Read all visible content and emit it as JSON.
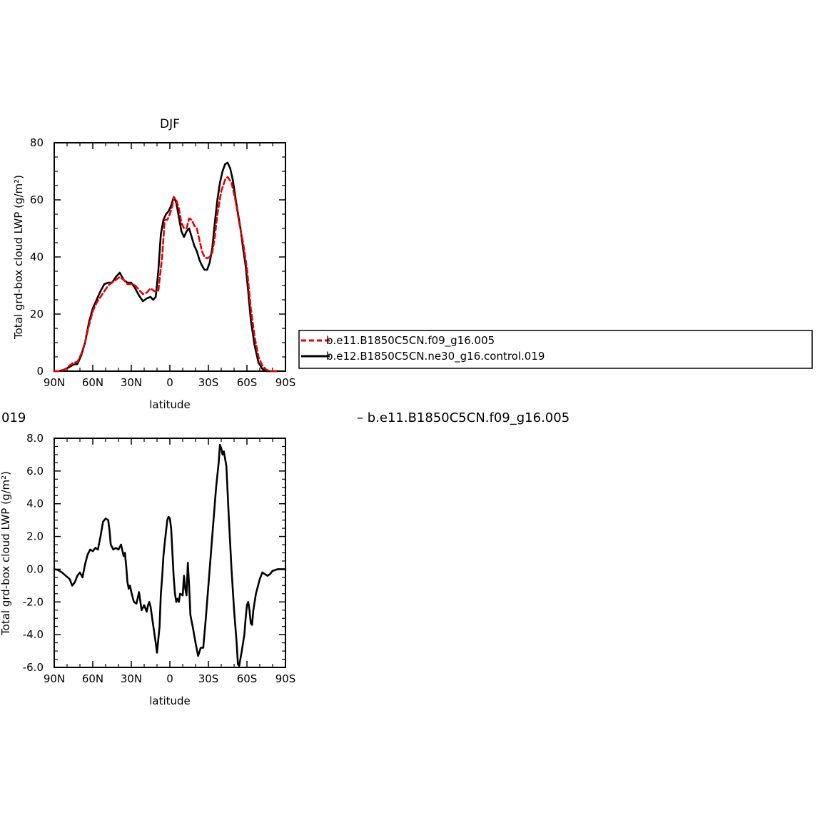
{
  "chart_data": [
    {
      "type": "line",
      "title": "DJF",
      "xlabel": "latitude",
      "ylabel": "Total grd-box cloud LWP (g/m²)",
      "xlim": [
        90,
        -90
      ],
      "ylim": [
        0,
        80
      ],
      "x_ticks": [
        90,
        60,
        30,
        0,
        -30,
        -60,
        -90
      ],
      "x_tick_labels": [
        "90N",
        "60N",
        "30N",
        "0",
        "30S",
        "60S",
        "90S"
      ],
      "y_ticks": [
        0,
        20,
        40,
        60,
        80
      ],
      "y_tick_labels": [
        "0",
        "20",
        "40",
        "60",
        "80"
      ],
      "grid": false,
      "legend": {
        "placement": "right",
        "entries": [
          "b.e11.B1850C5CN.f09_g16.005",
          "b.e12.B1850C5CN.ne30_g16.control.019"
        ]
      },
      "series": [
        {
          "name": "b.e11.B1850C5CN.f09_g16.005",
          "color": "#e60000",
          "dash": "dashed",
          "points": [
            [
              90,
              0
            ],
            [
              87,
              0
            ],
            [
              84,
              0.2
            ],
            [
              81,
              0.8
            ],
            [
              78,
              2
            ],
            [
              75,
              3
            ],
            [
              72,
              3.2
            ],
            [
              69,
              6
            ],
            [
              66,
              10
            ],
            [
              63,
              16
            ],
            [
              60,
              21
            ],
            [
              57,
              24
            ],
            [
              54,
              26
            ],
            [
              51,
              28
            ],
            [
              48,
              30
            ],
            [
              45,
              31
            ],
            [
              42,
              32
            ],
            [
              39,
              33
            ],
            [
              36,
              32
            ],
            [
              33,
              30.5
            ],
            [
              30,
              30.5
            ],
            [
              27,
              30
            ],
            [
              24,
              28.5
            ],
            [
              21,
              27
            ],
            [
              18,
              27.5
            ],
            [
              15,
              29
            ],
            [
              12,
              28
            ],
            [
              9,
              28
            ],
            [
              6,
              40
            ],
            [
              4,
              53
            ],
            [
              2,
              53
            ],
            [
              0,
              55
            ],
            [
              -2,
              58
            ],
            [
              -3,
              61
            ],
            [
              -5,
              60
            ],
            [
              -7,
              57
            ],
            [
              -9,
              52
            ],
            [
              -11,
              50
            ],
            [
              -13,
              50
            ],
            [
              -15,
              53.5
            ],
            [
              -17,
              53
            ],
            [
              -19,
              51
            ],
            [
              -21,
              50
            ],
            [
              -23,
              46
            ],
            [
              -25,
              42
            ],
            [
              -27,
              40
            ],
            [
              -29,
              39.5
            ],
            [
              -31,
              40
            ],
            [
              -33,
              41.5
            ],
            [
              -35,
              47
            ],
            [
              -37,
              55
            ],
            [
              -40,
              63
            ],
            [
              -43,
              67
            ],
            [
              -45,
              68
            ],
            [
              -48,
              66
            ],
            [
              -51,
              60
            ],
            [
              -54,
              52
            ],
            [
              -57,
              45
            ],
            [
              -60,
              36
            ],
            [
              -63,
              22
            ],
            [
              -66,
              12
            ],
            [
              -69,
              5
            ],
            [
              -72,
              2
            ],
            [
              -75,
              0.5
            ],
            [
              -78,
              0
            ],
            [
              -81,
              0
            ],
            [
              -84,
              0
            ]
          ]
        },
        {
          "name": "b.e12.B1850C5CN.ne30_g16.control.019",
          "color": "#000000",
          "dash": "solid",
          "points": [
            [
              90,
              0
            ],
            [
              87,
              0
            ],
            [
              84,
              0.3
            ],
            [
              81,
              0.8
            ],
            [
              78,
              1.5
            ],
            [
              75,
              2.3
            ],
            [
              72,
              2.5
            ],
            [
              69,
              5.5
            ],
            [
              66,
              10
            ],
            [
              63,
              17
            ],
            [
              60,
              22
            ],
            [
              57,
              25
            ],
            [
              54,
              28
            ],
            [
              51,
              30.5
            ],
            [
              48,
              31
            ],
            [
              45,
              31
            ],
            [
              42,
              33
            ],
            [
              39,
              34.5
            ],
            [
              36,
              32
            ],
            [
              33,
              31
            ],
            [
              30,
              31
            ],
            [
              27,
              29
            ],
            [
              24,
              26.5
            ],
            [
              21,
              24.5
            ],
            [
              18,
              25.5
            ],
            [
              15,
              26
            ],
            [
              13,
              25
            ],
            [
              11,
              26
            ],
            [
              9,
              35
            ],
            [
              7,
              48
            ],
            [
              5,
              53
            ],
            [
              3,
              55
            ],
            [
              1,
              56
            ],
            [
              -1,
              58
            ],
            [
              -3,
              61
            ],
            [
              -5,
              59
            ],
            [
              -7,
              54
            ],
            [
              -9,
              49
            ],
            [
              -11,
              47
            ],
            [
              -13,
              49
            ],
            [
              -15,
              50
            ],
            [
              -17,
              47
            ],
            [
              -19,
              44
            ],
            [
              -21,
              42
            ],
            [
              -23,
              39
            ],
            [
              -25,
              37
            ],
            [
              -27,
              35.5
            ],
            [
              -29,
              35.5
            ],
            [
              -31,
              38
            ],
            [
              -33,
              43
            ],
            [
              -35,
              52
            ],
            [
              -37,
              60
            ],
            [
              -39,
              66
            ],
            [
              -41,
              70
            ],
            [
              -43,
              72.5
            ],
            [
              -45,
              73
            ],
            [
              -47,
              71
            ],
            [
              -49,
              67
            ],
            [
              -52,
              58
            ],
            [
              -55,
              50
            ],
            [
              -57,
              43
            ],
            [
              -59,
              37
            ],
            [
              -61,
              28
            ],
            [
              -63,
              18
            ],
            [
              -66,
              9
            ],
            [
              -69,
              3
            ],
            [
              -72,
              0.8
            ],
            [
              -75,
              0
            ],
            [
              -78,
              0
            ],
            [
              -81,
              0
            ],
            [
              -84,
              0
            ]
          ]
        }
      ]
    },
    {
      "type": "line",
      "title_fragment_left": "019",
      "title_fragment_right": "– b.e11.B1850C5CN.f09_g16.005",
      "xlabel": "latitude",
      "ylabel": "Total grd-box cloud LWP (g/m²)",
      "xlim": [
        90,
        -90
      ],
      "ylim": [
        -6,
        8
      ],
      "x_ticks": [
        90,
        60,
        30,
        0,
        -30,
        -60,
        -90
      ],
      "x_tick_labels": [
        "90N",
        "60N",
        "30N",
        "0",
        "30S",
        "60S",
        "90S"
      ],
      "y_ticks": [
        -6,
        -4,
        -2,
        0,
        2,
        4,
        6,
        8
      ],
      "y_tick_labels": [
        "-6.0",
        "-4.0",
        "-2.0",
        "0.0",
        "2.0",
        "4.0",
        "6.0",
        "8.0"
      ],
      "grid": false,
      "series": [
        {
          "color": "#000000",
          "dash": "solid",
          "points": [
            [
              90,
              0
            ],
            [
              87,
              -0.05
            ],
            [
              84,
              -0.2
            ],
            [
              81,
              -0.4
            ],
            [
              78,
              -0.6
            ],
            [
              76,
              -1
            ],
            [
              74,
              -0.8
            ],
            [
              72,
              -0.4
            ],
            [
              70,
              -0.2
            ],
            [
              68,
              -0.5
            ],
            [
              66,
              0.3
            ],
            [
              64,
              0.9
            ],
            [
              62,
              1.2
            ],
            [
              60,
              1.1
            ],
            [
              58,
              1.3
            ],
            [
              56,
              1.2
            ],
            [
              54,
              2
            ],
            [
              52,
              2.9
            ],
            [
              50,
              3.1
            ],
            [
              48,
              3
            ],
            [
              47,
              2.4
            ],
            [
              46,
              1.5
            ],
            [
              44,
              1.2
            ],
            [
              42,
              1.3
            ],
            [
              40,
              1.2
            ],
            [
              38,
              1.5
            ],
            [
              36,
              0.8
            ],
            [
              35,
              1.0
            ],
            [
              34,
              0.2
            ],
            [
              33,
              -0.8
            ],
            [
              32,
              -1.2
            ],
            [
              31,
              -1.0
            ],
            [
              30,
              -1.4
            ],
            [
              28,
              -2.0
            ],
            [
              26,
              -2.1
            ],
            [
              24,
              -1.4
            ],
            [
              22,
              -2.5
            ],
            [
              20,
              -2.2
            ],
            [
              18,
              -2.6
            ],
            [
              17,
              -2.2
            ],
            [
              16,
              -2.0
            ],
            [
              15,
              -2.3
            ],
            [
              13,
              -3.4
            ],
            [
              11,
              -4.5
            ],
            [
              10,
              -5.1
            ],
            [
              8,
              -3.5
            ],
            [
              7,
              -1.5
            ],
            [
              6,
              -0.5
            ],
            [
              5,
              0.8
            ],
            [
              4,
              1.6
            ],
            [
              3,
              2.3
            ],
            [
              2,
              3.0
            ],
            [
              1,
              3.2
            ],
            [
              0,
              3.1
            ],
            [
              -1,
              2.5
            ],
            [
              -2,
              1.0
            ],
            [
              -3,
              -0.5
            ],
            [
              -4,
              -1.5
            ],
            [
              -5,
              -2.0
            ],
            [
              -6,
              -1.8
            ],
            [
              -7,
              -2.0
            ],
            [
              -8,
              -1.5
            ],
            [
              -10,
              -1.6
            ],
            [
              -11,
              -0.4
            ],
            [
              -12,
              -1.2
            ],
            [
              -13,
              -1.6
            ],
            [
              -14,
              0.4
            ],
            [
              -15,
              -1.0
            ],
            [
              -16,
              -2.8
            ],
            [
              -18,
              -3.6
            ],
            [
              -20,
              -4.5
            ],
            [
              -22,
              -5.3
            ],
            [
              -24,
              -4.8
            ],
            [
              -26,
              -4.8
            ],
            [
              -28,
              -3.0
            ],
            [
              -30,
              -1.0
            ],
            [
              -32,
              1.0
            ],
            [
              -34,
              3.0
            ],
            [
              -36,
              5.0
            ],
            [
              -38,
              6.5
            ],
            [
              -39,
              7.6
            ],
            [
              -40,
              7.4
            ],
            [
              -41,
              7.0
            ],
            [
              -42,
              7.2
            ],
            [
              -44,
              6.3
            ],
            [
              -46,
              3.0
            ],
            [
              -48,
              0
            ],
            [
              -50,
              -2.5
            ],
            [
              -52,
              -4.5
            ],
            [
              -53,
              -5.8
            ],
            [
              -54,
              -5.9
            ],
            [
              -56,
              -5.0
            ],
            [
              -58,
              -4.0
            ],
            [
              -59,
              -3.0
            ],
            [
              -60,
              -2.2
            ],
            [
              -61,
              -2.0
            ],
            [
              -62,
              -2.5
            ],
            [
              -63,
              -3.3
            ],
            [
              -64,
              -3.4
            ],
            [
              -65,
              -2.5
            ],
            [
              -66,
              -2.0
            ],
            [
              -67,
              -1.5
            ],
            [
              -68,
              -1.2
            ],
            [
              -70,
              -0.6
            ],
            [
              -72,
              -0.2
            ],
            [
              -74,
              -0.3
            ],
            [
              -76,
              -0.4
            ],
            [
              -78,
              -0.3
            ],
            [
              -80,
              -0.1
            ],
            [
              -82,
              -0.05
            ],
            [
              -84,
              0
            ],
            [
              -87,
              0
            ],
            [
              -90,
              0
            ]
          ]
        }
      ]
    }
  ]
}
